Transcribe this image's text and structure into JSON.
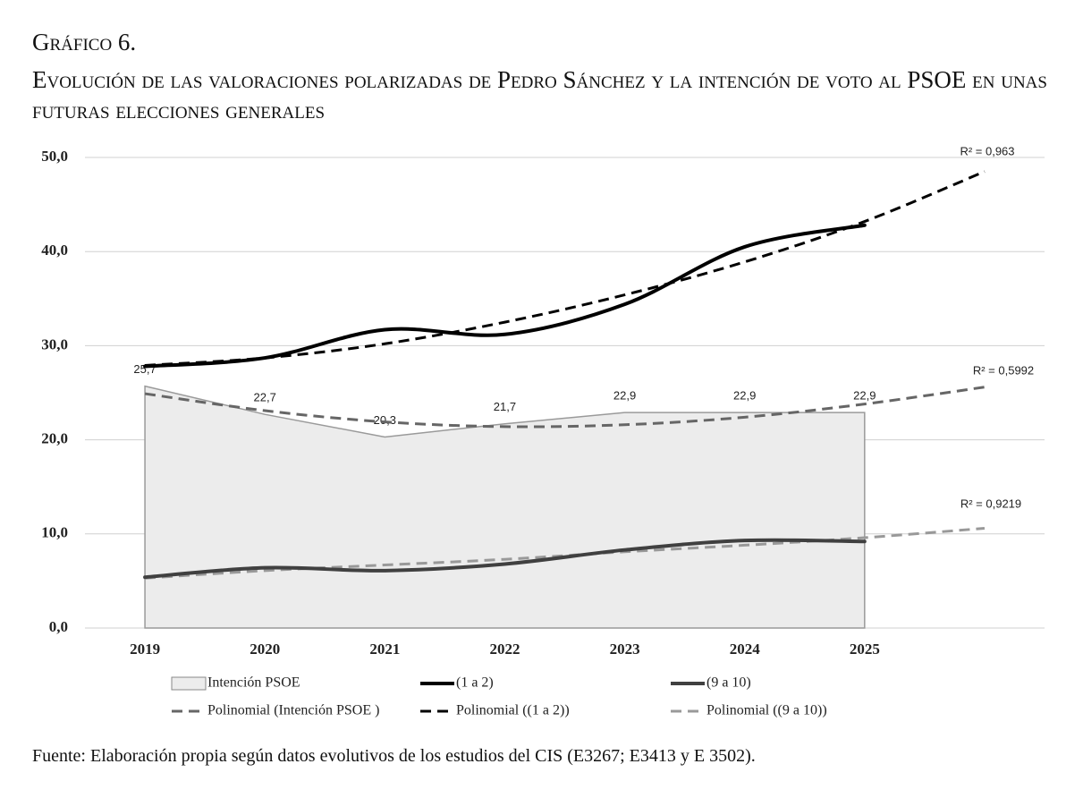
{
  "figure_label": "Gráfico 6.",
  "title": "Evolución de las valoraciones polarizadas de Pedro Sánchez y la intención de voto al PSOE en unas futuras elecciones generales",
  "source": "Fuente: Elaboración propia según datos evolutivos de los estudios del CIS (E3267; E3413 y E 3502).",
  "chart_data": {
    "type": "line",
    "categories": [
      "2019",
      "2020",
      "2021",
      "2022",
      "2023",
      "2024",
      "2025",
      null
    ],
    "ylim": [
      0,
      50
    ],
    "yticks": [
      {
        "value": 0,
        "label": "0,0"
      },
      {
        "value": 10,
        "label": "10,0"
      },
      {
        "value": 20,
        "label": "20,0"
      },
      {
        "value": 30,
        "label": "30,0"
      },
      {
        "value": 40,
        "label": "40,0"
      },
      {
        "value": 50,
        "label": "50,0"
      }
    ],
    "grid": true,
    "series": [
      {
        "name": "Intención PSOE",
        "style": "area",
        "color": "#ececec",
        "values": [
          25.7,
          22.7,
          20.3,
          21.7,
          22.9,
          22.9,
          22.9,
          null
        ],
        "value_labels": [
          "25,7",
          "22,7",
          "20,3",
          "21,7",
          "22,9",
          "22,9",
          "22,9",
          null
        ]
      },
      {
        "name": "(1 a 2)",
        "style": "solid",
        "color": "#000000",
        "values": [
          27.8,
          28.7,
          31.7,
          31.2,
          34.4,
          40.5,
          42.8,
          null
        ]
      },
      {
        "name": "(9 a 10)",
        "style": "solid",
        "color": "#404040",
        "values": [
          5.4,
          6.4,
          6.1,
          6.8,
          8.3,
          9.3,
          9.2,
          null
        ]
      },
      {
        "name": "Polinomial (Intención PSOE )",
        "style": "dashed",
        "color": "#666666",
        "values": [
          24.9,
          23.1,
          21.9,
          21.4,
          21.6,
          22.4,
          23.8,
          25.6
        ]
      },
      {
        "name": "Polinomial ((1 a 2))",
        "style": "dashed",
        "color": "#000000",
        "values": [
          27.9,
          28.7,
          30.2,
          32.5,
          35.4,
          38.9,
          43.2,
          48.5
        ]
      },
      {
        "name": "Polinomial ((9 a 10))",
        "style": "dashed",
        "color": "#999999",
        "values": [
          5.3,
          6.1,
          6.7,
          7.3,
          8.1,
          8.8,
          9.6,
          10.6
        ]
      }
    ],
    "annotations": [
      "R² = 0,963",
      "R² = 0,5992",
      "R² = 0,9219"
    ]
  }
}
